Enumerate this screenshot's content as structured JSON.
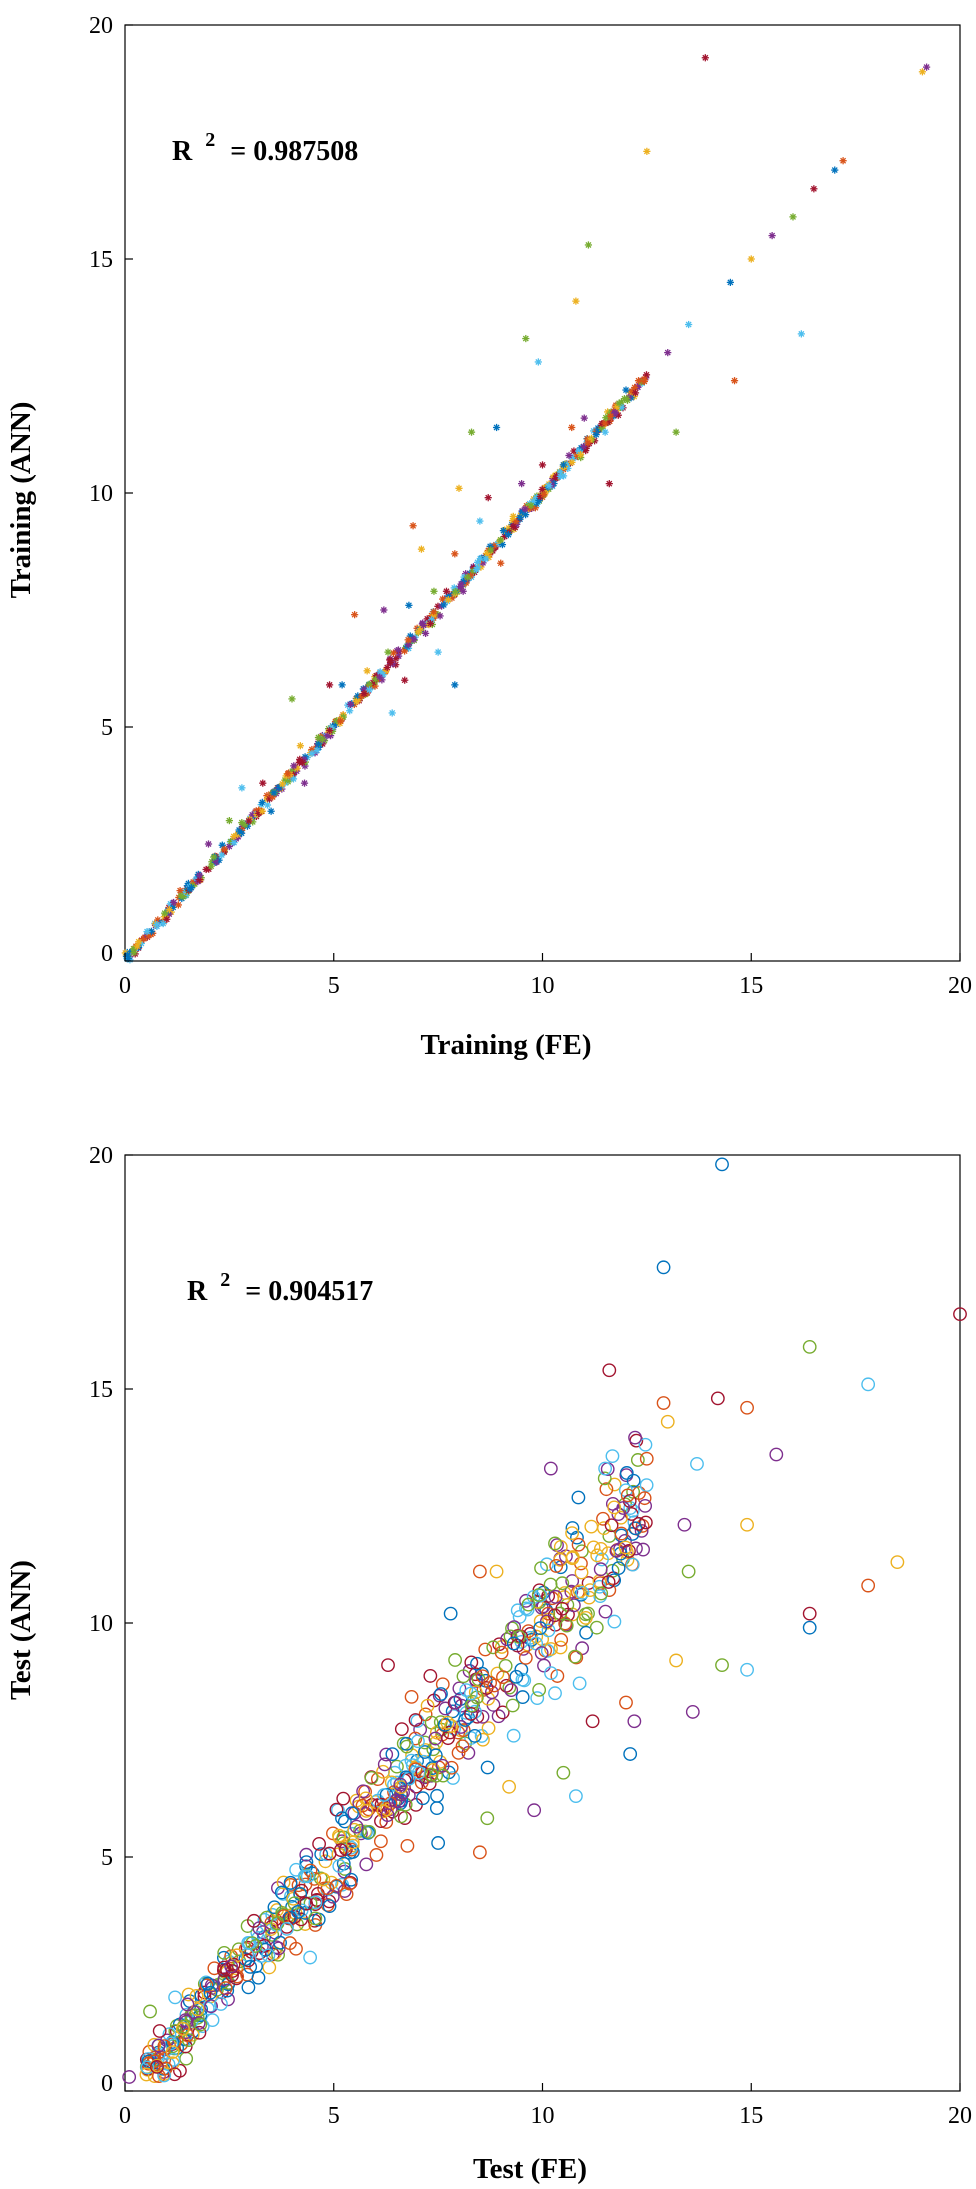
{
  "colors": [
    "#0072BD",
    "#D95319",
    "#EDB120",
    "#7E2F8E",
    "#77AC30",
    "#4DBEEE",
    "#A2142F"
  ],
  "chart_data": [
    {
      "type": "scatter",
      "marker": "asterisk",
      "xlabel": "Training (FE)",
      "ylabel": "Training (ANN)",
      "annotation": {
        "text": "R",
        "sup": "2",
        "value": "= 0.987508"
      },
      "xlim": [
        0,
        20
      ],
      "ylim": [
        0,
        20
      ],
      "xticks": [
        "0",
        "5",
        "10",
        "15",
        "20"
      ],
      "yticks": [
        "0",
        "5",
        "10",
        "15",
        "20"
      ],
      "grid": false,
      "bulk": {
        "description": "dense points along y = x",
        "x_range": [
          0,
          12.5
        ],
        "count_approx": 650
      },
      "outliers": [
        [
          2.0,
          2.5
        ],
        [
          2.5,
          3.0
        ],
        [
          2.8,
          3.7
        ],
        [
          3.3,
          3.8
        ],
        [
          3.5,
          3.2
        ],
        [
          3.9,
          4.0
        ],
        [
          4.2,
          4.6
        ],
        [
          4.3,
          3.8
        ],
        [
          4.0,
          5.6
        ],
        [
          4.6,
          4.5
        ],
        [
          4.9,
          5.9
        ],
        [
          5.2,
          5.9
        ],
        [
          5.5,
          7.4
        ],
        [
          5.8,
          6.2
        ],
        [
          6.2,
          7.5
        ],
        [
          6.3,
          6.6
        ],
        [
          6.4,
          5.3
        ],
        [
          6.7,
          6.0
        ],
        [
          6.8,
          7.6
        ],
        [
          6.9,
          9.3
        ],
        [
          7.1,
          8.8
        ],
        [
          7.2,
          7.0
        ],
        [
          7.4,
          7.9
        ],
        [
          7.5,
          6.6
        ],
        [
          7.7,
          7.9
        ],
        [
          7.9,
          5.9
        ],
        [
          7.9,
          8.7
        ],
        [
          8.0,
          10.1
        ],
        [
          8.1,
          7.9
        ],
        [
          8.3,
          11.3
        ],
        [
          8.5,
          9.4
        ],
        [
          8.7,
          9.9
        ],
        [
          8.9,
          11.4
        ],
        [
          9.0,
          8.5
        ],
        [
          9.3,
          9.5
        ],
        [
          9.5,
          10.2
        ],
        [
          9.6,
          13.3
        ],
        [
          9.9,
          12.8
        ],
        [
          10.0,
          10.6
        ],
        [
          10.5,
          10.6
        ],
        [
          10.7,
          11.4
        ],
        [
          10.8,
          14.1
        ],
        [
          11.0,
          11.6
        ],
        [
          11.1,
          15.3
        ],
        [
          11.5,
          11.3
        ],
        [
          11.6,
          10.2
        ],
        [
          12.0,
          12.2
        ],
        [
          12.3,
          12.4
        ],
        [
          12.5,
          17.3
        ],
        [
          13.0,
          13.0
        ],
        [
          13.2,
          11.3
        ],
        [
          13.5,
          13.6
        ],
        [
          13.9,
          19.3
        ],
        [
          14.5,
          14.5
        ],
        [
          14.6,
          12.4
        ],
        [
          15.0,
          15.0
        ],
        [
          15.5,
          15.5
        ],
        [
          16.0,
          15.9
        ],
        [
          16.2,
          13.4
        ],
        [
          16.5,
          16.5
        ],
        [
          17.0,
          16.9
        ],
        [
          17.2,
          17.1
        ],
        [
          19.1,
          19.0
        ],
        [
          19.2,
          19.1
        ]
      ]
    },
    {
      "type": "scatter",
      "marker": "circle",
      "xlabel": "Test (FE)",
      "ylabel": "Test (ANN)",
      "annotation": {
        "text": "R",
        "sup": "2",
        "value": "= 0.904517"
      },
      "xlim": [
        0,
        20
      ],
      "ylim": [
        0,
        20
      ],
      "xticks": [
        "0",
        "5",
        "10",
        "15",
        "20"
      ],
      "yticks": [
        "0",
        "5",
        "10",
        "15",
        "20"
      ],
      "grid": false,
      "bulk": {
        "description": "dense cloud around y = x",
        "x_range": [
          0.5,
          12.5
        ],
        "count_approx": 700
      },
      "outliers": [
        [
          0.1,
          0.3
        ],
        [
          0.6,
          1.7
        ],
        [
          1.2,
          2.0
        ],
        [
          6.3,
          9.1
        ],
        [
          7.8,
          10.2
        ],
        [
          8.5,
          11.1
        ],
        [
          8.9,
          11.1
        ],
        [
          10.2,
          13.3
        ],
        [
          10.3,
          11.7
        ],
        [
          11.5,
          13.3
        ],
        [
          11.6,
          15.4
        ],
        [
          12.9,
          17.6
        ],
        [
          12.9,
          14.7
        ],
        [
          13.0,
          14.3
        ],
        [
          13.4,
          12.1
        ],
        [
          13.5,
          11.1
        ],
        [
          13.7,
          13.4
        ],
        [
          14.2,
          14.8
        ],
        [
          14.3,
          19.8
        ],
        [
          14.9,
          14.6
        ],
        [
          14.9,
          12.1
        ],
        [
          15.6,
          13.6
        ],
        [
          16.4,
          15.9
        ],
        [
          17.8,
          15.1
        ],
        [
          20.0,
          16.6
        ],
        [
          7.5,
          5.3
        ],
        [
          8.5,
          5.1
        ],
        [
          9.2,
          6.5
        ],
        [
          9.8,
          6.0
        ],
        [
          10.5,
          6.8
        ],
        [
          10.8,
          6.3
        ],
        [
          11.2,
          7.9
        ],
        [
          12.1,
          7.2
        ],
        [
          12.0,
          8.3
        ],
        [
          13.2,
          9.2
        ],
        [
          13.6,
          8.1
        ],
        [
          14.3,
          9.1
        ],
        [
          14.9,
          9.0
        ],
        [
          16.4,
          10.2
        ],
        [
          16.4,
          9.9
        ],
        [
          17.8,
          10.8
        ],
        [
          18.5,
          11.3
        ],
        [
          12.2,
          7.9
        ],
        [
          11.3,
          9.9
        ],
        [
          10.3,
          8.5
        ]
      ]
    }
  ]
}
